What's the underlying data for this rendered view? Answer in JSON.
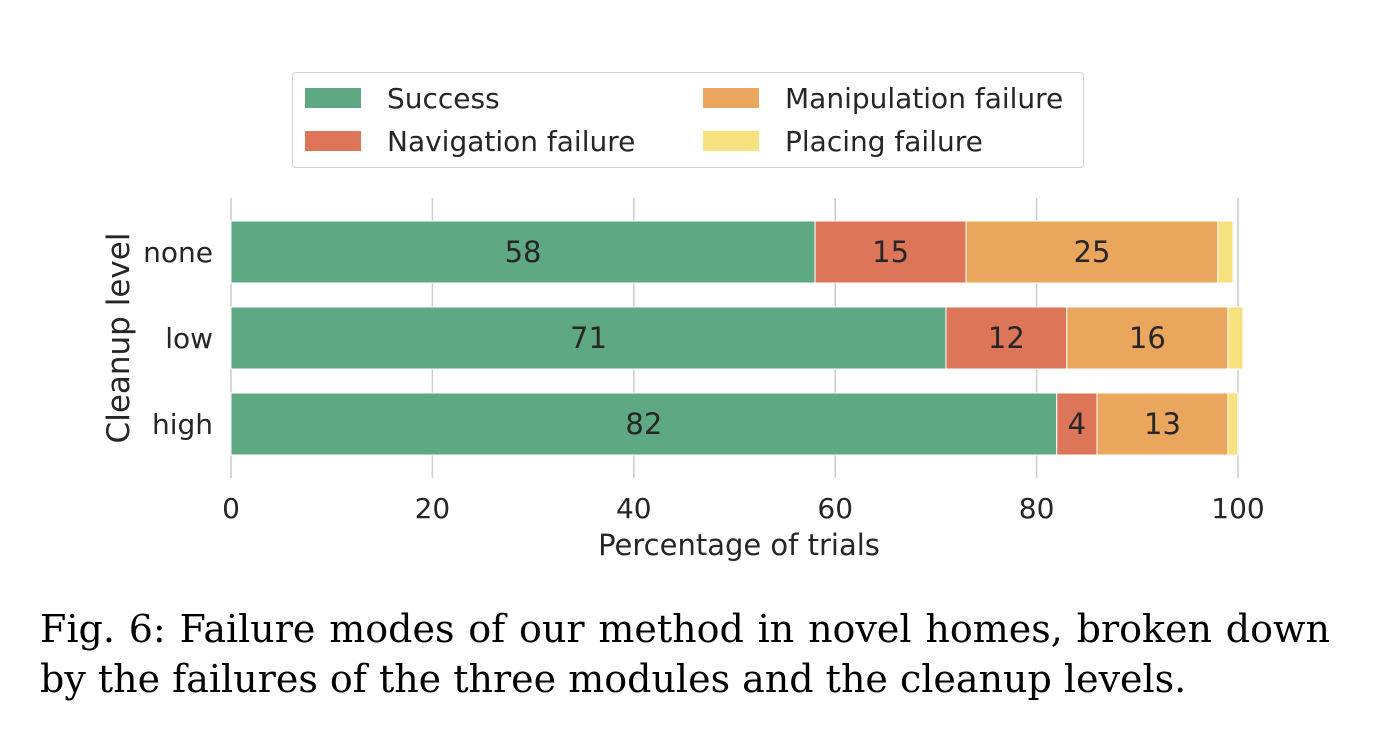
{
  "chart_data": {
    "type": "bar",
    "orientation": "horizontal",
    "stacked": true,
    "categories": [
      "none",
      "low",
      "high"
    ],
    "series": [
      {
        "name": "Success",
        "values": [
          58,
          71,
          82
        ],
        "labels": [
          "58",
          "71",
          "82"
        ],
        "color": "#5fa884"
      },
      {
        "name": "Navigation failure",
        "values": [
          15,
          12,
          4
        ],
        "labels": [
          "15",
          "12",
          "4"
        ],
        "color": "#dd7559"
      },
      {
        "name": "Manipulation failure",
        "values": [
          25,
          16,
          13
        ],
        "labels": [
          "25",
          "16",
          "13"
        ],
        "color": "#eba65e"
      },
      {
        "name": "Placing failure",
        "values": [
          1.5,
          1.5,
          1
        ],
        "labels": [
          "",
          "",
          ""
        ],
        "color": "#f7e17e"
      }
    ],
    "xlabel": "Percentage of trials",
    "ylabel": "Cleanup level",
    "xlim": [
      0,
      100
    ],
    "xticks": [
      0,
      20,
      40,
      60,
      80,
      100
    ],
    "xtick_labels": [
      "0",
      "20",
      "40",
      "60",
      "80",
      "100"
    ],
    "grid": "vertical",
    "legend_position": "top"
  },
  "legend": {
    "items": [
      {
        "label": "Success",
        "color": "#5fa884"
      },
      {
        "label": "Manipulation failure",
        "color": "#eba65e"
      },
      {
        "label": "Navigation failure",
        "color": "#dd7559"
      },
      {
        "label": "Placing failure",
        "color": "#f7e17e"
      }
    ]
  },
  "caption": {
    "text": "Fig. 6: Failure modes of our method in novel homes, broken down by the failures of the three modules and the cleanup levels."
  }
}
